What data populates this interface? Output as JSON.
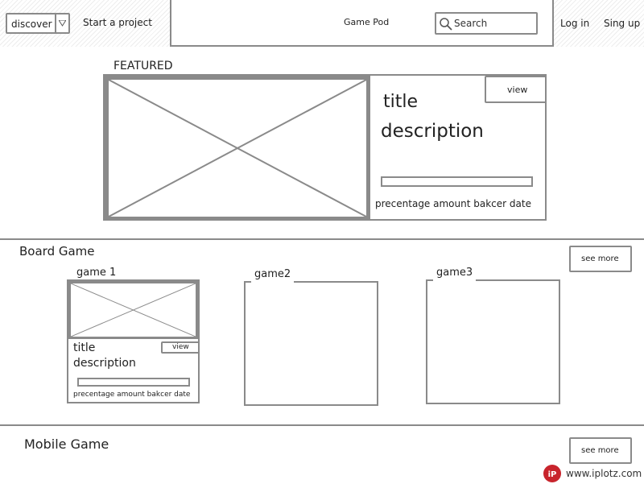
{
  "navbar": {
    "discover_label": "discover",
    "start_project": "Start a project",
    "brand": "Game Pod",
    "search_placeholder": "Search",
    "login": "Log in",
    "signup": "Sing up"
  },
  "featured": {
    "heading": "FEATURED",
    "view_label": "view",
    "title": "title",
    "description": "description",
    "stats": "precentage amount bakcer date"
  },
  "board": {
    "heading": "Board Game",
    "see_more": "see more",
    "games": [
      {
        "label": "game 1",
        "title": "title",
        "description": "description",
        "view_label": "view",
        "stats": "precentage amount bakcer date"
      },
      {
        "label": "game2"
      },
      {
        "label": "game3"
      }
    ]
  },
  "mobile": {
    "heading": "Mobile Game",
    "see_more": "see more"
  },
  "watermark": {
    "badge": "iP",
    "url": "www.iplotz.com"
  }
}
